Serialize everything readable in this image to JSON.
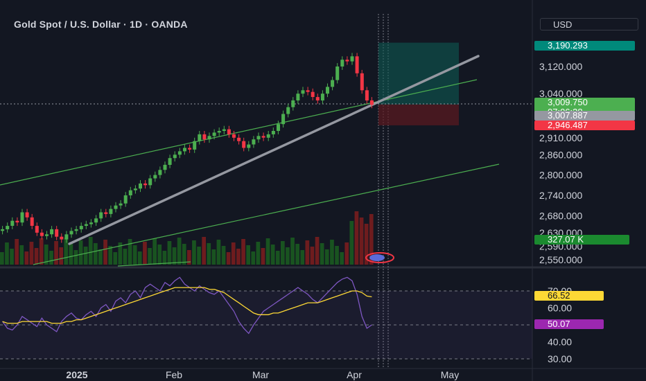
{
  "header": {
    "title": "Gold Spot / U.S. Dollar · 1D · OANDA",
    "currency": "USD"
  },
  "colors": {
    "background": "#131722",
    "up": "#26a69a",
    "up_candle": "#4caf50",
    "down_candle": "#f23645",
    "trendline": "#9598a1",
    "channel": "#4caf50",
    "rsi": "#7e57c2",
    "rsi_ma": "#fdd835",
    "target_zone": "#0d5e56",
    "stop_zone": "#5c1a1f"
  },
  "badges": {
    "target_price": "3,190.293",
    "last_price": "3,009.750",
    "countdown": "07:06:38",
    "entry_price": "3,007.887",
    "stop_price": "2,946.487",
    "volume": "327.07 K",
    "rsi_ma_value": "66.52",
    "rsi_value": "50.07"
  },
  "chart_data": [
    {
      "type": "candlestick",
      "title": "Gold Spot / U.S. Dollar · 1D · OANDA",
      "y_axis_ticks": [
        "3,120.000",
        "3,040.000",
        "2,910.000",
        "2,860.000",
        "2,800.000",
        "2,740.000",
        "2,680.000",
        "2,630.000",
        "2,590.000",
        "2,550.000"
      ],
      "x_axis_ticks": [
        "2025",
        "Feb",
        "Mar",
        "Apr",
        "May"
      ],
      "ylim": [
        2550,
        3200
      ],
      "last_price": 3009.75,
      "ohlc_close_approx": [
        2640,
        2650,
        2665,
        2660,
        2690,
        2675,
        2650,
        2630,
        2620,
        2625,
        2640,
        2618,
        2610,
        2625,
        2635,
        2640,
        2650,
        2655,
        2660,
        2672,
        2690,
        2685,
        2700,
        2710,
        2716,
        2740,
        2755,
        2760,
        2775,
        2770,
        2790,
        2800,
        2815,
        2830,
        2850,
        2860,
        2870,
        2880,
        2875,
        2900,
        2920,
        2905,
        2915,
        2925,
        2930,
        2935,
        2920,
        2910,
        2900,
        2880,
        2890,
        2905,
        2915,
        2910,
        2920,
        2930,
        2950,
        2980,
        3000,
        3020,
        3040,
        3050,
        3045,
        3030,
        3020,
        3040,
        3060,
        3080,
        3120,
        3140,
        3135,
        3150,
        3100,
        3050,
        3020,
        3007
      ],
      "trade": {
        "target": 3190.293,
        "entry": 3007.887,
        "stop": 2946.487
      },
      "channel_lines": [
        {
          "x0": "2024-12",
          "y0": 2740,
          "x1": "2025-04",
          "y1": 3090
        },
        {
          "x0": "2024-12",
          "y0": 2550,
          "x1": "2025-04",
          "y1": 2800
        }
      ],
      "trendline": {
        "x0": "2024-12-30",
        "y0": 2600,
        "x1": "2025-04-20",
        "y1": 3160
      }
    },
    {
      "type": "line",
      "title": "RSI",
      "y_axis_ticks": [
        "70.00",
        "60.00",
        "40.00",
        "30.00"
      ],
      "ylim": [
        25,
        80
      ],
      "bands": [
        30,
        50,
        70
      ],
      "series": [
        {
          "name": "",
          "values": [
            52,
            48,
            47,
            50,
            55,
            53,
            51,
            49,
            54,
            50,
            48,
            46,
            52,
            55,
            57,
            54,
            53,
            56,
            58,
            55,
            60,
            62,
            58,
            64,
            66,
            63,
            68,
            70,
            66,
            72,
            74,
            72,
            70,
            75,
            73,
            76,
            78,
            74,
            72,
            70,
            73,
            71,
            69,
            68,
            70,
            66,
            62,
            58,
            52,
            48,
            45,
            50,
            54,
            58,
            60,
            62,
            64,
            66,
            68,
            70,
            72,
            70,
            68,
            65,
            63,
            66,
            69,
            72,
            75,
            77,
            78,
            76,
            68,
            55,
            48,
            50
          ]
        },
        {
          "name": "",
          "values": [
            52,
            51,
            51,
            51,
            52,
            52,
            52,
            52,
            52,
            52,
            51,
            51,
            51,
            52,
            52,
            53,
            53,
            54,
            55,
            56,
            57,
            58,
            59,
            60,
            61,
            62,
            63,
            64,
            65,
            66,
            67,
            68,
            69,
            70,
            71,
            72,
            72,
            72,
            72,
            72,
            72,
            72,
            71,
            71,
            70,
            69,
            67,
            65,
            63,
            61,
            59,
            57,
            56,
            56,
            56,
            57,
            57,
            58,
            59,
            60,
            61,
            62,
            63,
            63,
            63,
            64,
            65,
            66,
            67,
            68,
            69,
            70,
            70,
            69,
            67,
            66.52
          ]
        }
      ]
    }
  ]
}
